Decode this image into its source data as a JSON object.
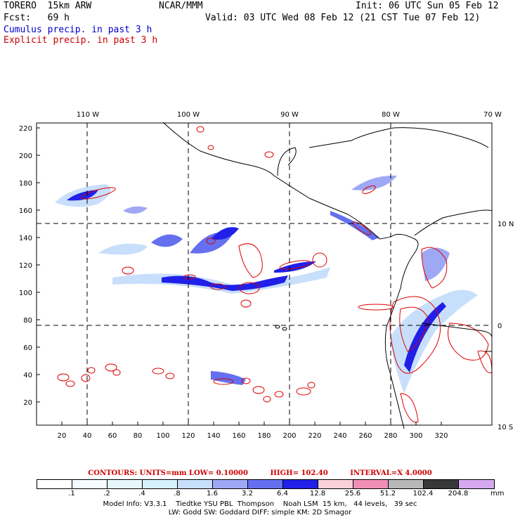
{
  "header": {
    "model": "TORERO  15km ARW",
    "org": "NCAR/MMM",
    "init": "Init: 06 UTC Sun 05 Feb 12",
    "fcst": "Fcst:   69 h",
    "valid": "Valid: 03 UTC Wed 08 Feb 12 (21 CST Tue 07 Feb 12)",
    "cumulus": "Cumulus precip. in past 3 h",
    "explicit": "Explicit precip. in past 3 h"
  },
  "map": {
    "top_labels": [
      "110 W",
      "100 W",
      "90 W",
      "80 W",
      "70 W"
    ],
    "right_labels": [
      "10 N",
      "0",
      "10 S"
    ],
    "y_ticks": [
      "220",
      "200",
      "180",
      "160",
      "140",
      "120",
      "100",
      "80",
      "60",
      "40",
      "20"
    ],
    "x_ticks": [
      "20",
      "40",
      "60",
      "80",
      "100",
      "120",
      "140",
      "160",
      "180",
      "200",
      "220",
      "240",
      "260",
      "280",
      "300",
      "320"
    ],
    "colors": {
      "coast": "#000000",
      "explicit": "#dd0000",
      "grid": "#000000"
    }
  },
  "contours": {
    "title": "CONTOURS:  UNITS=mm  LOW= 0.10000",
    "high": "HIGH=  102.40",
    "interval": "INTERVAL=X  4.0000"
  },
  "colorbar": {
    "colors": [
      "#ffffff",
      "#f4fcff",
      "#e6f8fd",
      "#d8f2fd",
      "#c8dffb",
      "#9fa8f4",
      "#6470ef",
      "#2020e8",
      "#f8d2d8",
      "#f08fb8",
      "#b8b8b8",
      "#383838",
      "#d6a8ef"
    ],
    "labels": [
      ".1",
      ".2",
      ".4",
      ".8",
      "1.6",
      "3.2",
      "6.4",
      "12.8",
      "25.6",
      "51.2",
      "102.4",
      "204.8"
    ],
    "unit": "mm"
  },
  "info": {
    "line1": "Model Info: V3.3.1    Tiedtke YSU PBL  Thompson    Noah LSM  15 km,   44 levels,   39 sec",
    "line2": "LW: Godd SW: Goddard DIFF: simple KM: 2D Smagor"
  }
}
